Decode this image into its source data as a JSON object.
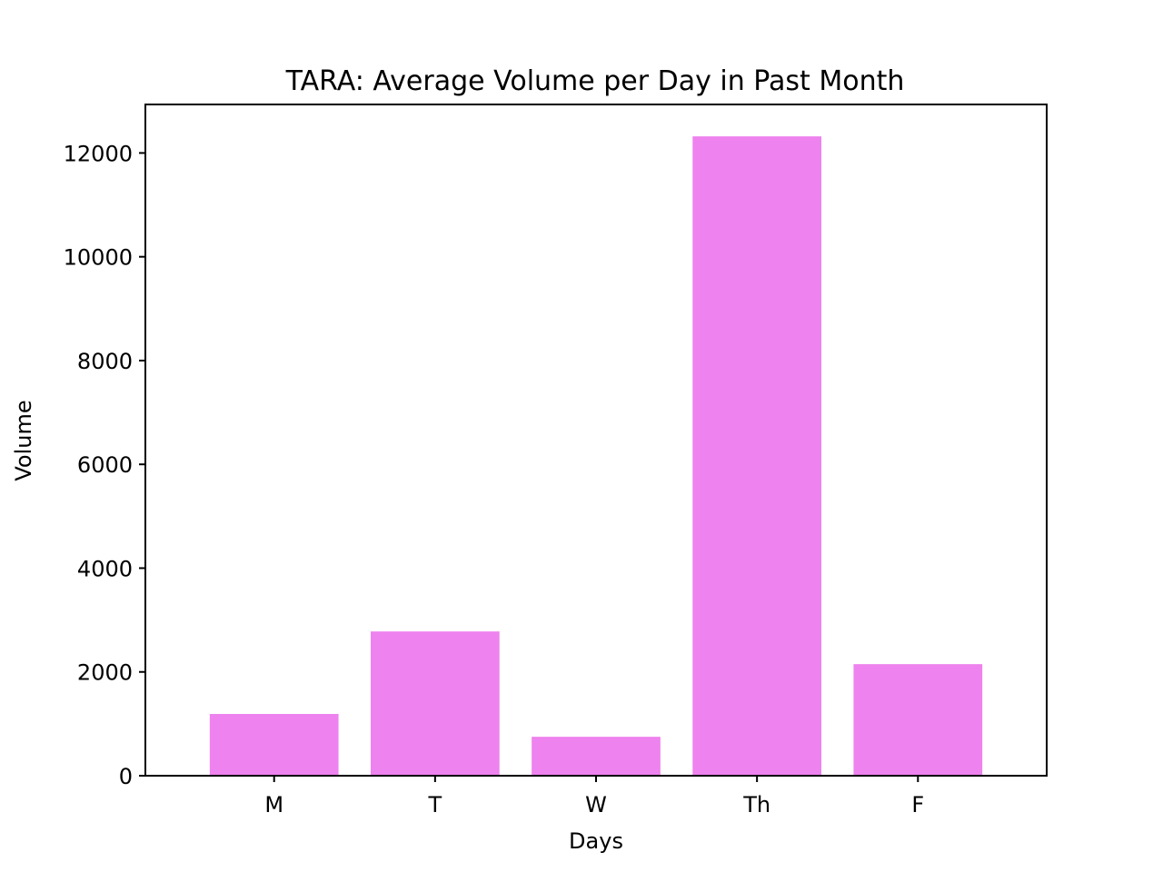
{
  "chart_data": {
    "type": "bar",
    "title": "TARA: Average Volume per Day in Past Month",
    "xlabel": "Days",
    "ylabel": "Volume",
    "categories": [
      "M",
      "T",
      "W",
      "Th",
      "F"
    ],
    "values": [
      1190,
      2780,
      750,
      12320,
      2150
    ],
    "yticks": [
      0,
      2000,
      4000,
      6000,
      8000,
      10000,
      12000
    ],
    "ylim": [
      0,
      12935
    ],
    "grid": false,
    "colors": {
      "bar": "#ee82ee",
      "axis": "#000000",
      "text": "#000000"
    }
  }
}
